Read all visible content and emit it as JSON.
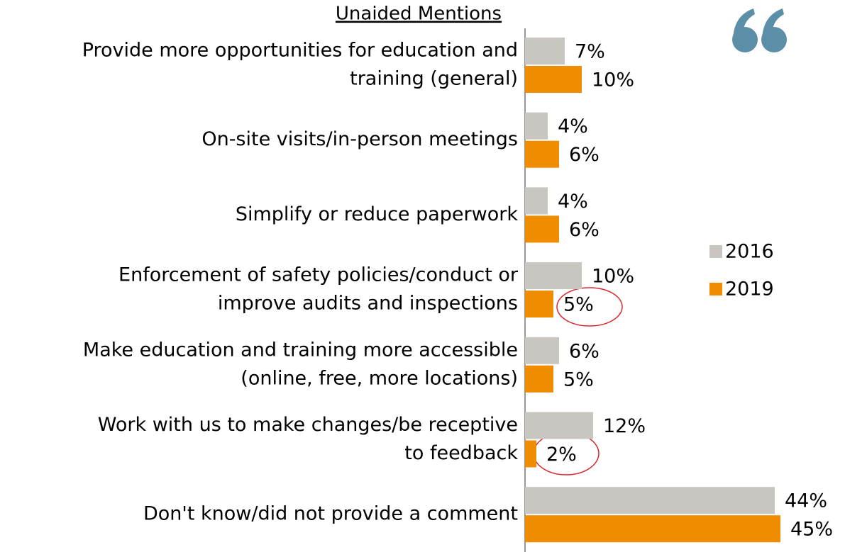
{
  "chart_data": {
    "type": "bar",
    "orientation": "horizontal",
    "title": "Unaided Mentions",
    "categories": [
      [
        "Provide more opportunities for education and",
        "training (general)"
      ],
      [
        "On-site visits/in-person meetings"
      ],
      [
        "Simplify or reduce paperwork"
      ],
      [
        "Enforcement of safety policies/conduct or",
        "improve audits and inspections"
      ],
      [
        "Make education and training more accessible",
        "(online, free, more locations)"
      ],
      [
        "Work with us to make changes/be receptive",
        "to feedback"
      ],
      [
        "Don't know/did not provide a comment"
      ]
    ],
    "series": [
      {
        "name": "2016",
        "color": "#c9c5c1",
        "values": [
          7,
          4,
          4,
          10,
          6,
          12,
          44
        ],
        "value_labels": [
          "7%",
          "4%",
          "4%",
          "10%",
          "6%",
          "12%",
          "44%"
        ]
      },
      {
        "name": "2019",
        "color": "#ef8c00",
        "values": [
          10,
          6,
          6,
          5,
          5,
          2,
          45
        ],
        "value_labels": [
          "10%",
          "6%",
          "6%",
          "5%",
          "5%",
          "2%",
          "45%"
        ]
      }
    ],
    "xlim": [
      0,
      55
    ],
    "legend": "right"
  }
}
